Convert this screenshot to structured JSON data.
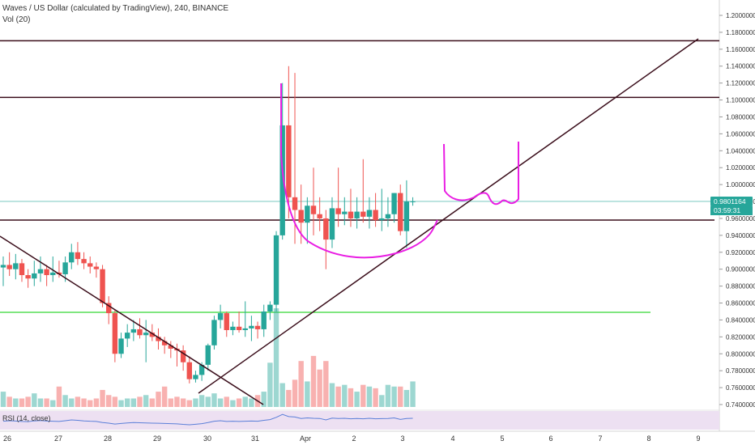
{
  "header": {
    "title": "Waves / US Dollar (calculated by TradingView), 240, BINANCE",
    "volume_label": "Vol (20)"
  },
  "rsi_label": "RSI (14, close)",
  "price_label": {
    "value": "0.9801164",
    "countdown": "03:59:31",
    "color": "#26a69a"
  },
  "colors": {
    "up": "#26a69a",
    "down": "#ef5350",
    "drawing": "#e91ee3",
    "line": "#3a0d1a",
    "support": "#00cc00",
    "rsi_bg": "#ede0f2",
    "rsi_line": "#5b7fd8"
  },
  "chart_data": {
    "type": "candlestick",
    "title": "Waves / US Dollar (calculated by TradingView), 240, BINANCE",
    "y_axis": {
      "min": 0.74,
      "max": 1.2,
      "ticks": [
        "1.2000000",
        "1.1800000",
        "1.1600000",
        "1.1400000",
        "1.1200000",
        "1.1000000",
        "1.0800000",
        "1.0600000",
        "1.0400000",
        "1.0200000",
        "1.0000000",
        "0.9800000",
        "0.9600000",
        "0.9400000",
        "0.9200000",
        "0.9000000",
        "0.8800000",
        "0.8600000",
        "0.8400000",
        "0.8200000",
        "0.8000000",
        "0.7800000",
        "0.7600000",
        "0.7400000"
      ]
    },
    "x_ticks": [
      "26",
      "27",
      "28",
      "29",
      "30",
      "31",
      "Apr",
      "2",
      "3",
      "4",
      "5",
      "6",
      "7",
      "8",
      "9"
    ],
    "candles": [
      {
        "o": 0.902,
        "h": 0.915,
        "l": 0.88,
        "c": 0.905
      },
      {
        "o": 0.905,
        "h": 0.92,
        "l": 0.892,
        "c": 0.9
      },
      {
        "o": 0.9,
        "h": 0.918,
        "l": 0.888,
        "c": 0.907
      },
      {
        "o": 0.907,
        "h": 0.912,
        "l": 0.885,
        "c": 0.893
      },
      {
        "o": 0.893,
        "h": 0.9,
        "l": 0.878,
        "c": 0.889
      },
      {
        "o": 0.889,
        "h": 0.91,
        "l": 0.88,
        "c": 0.895
      },
      {
        "o": 0.895,
        "h": 0.915,
        "l": 0.885,
        "c": 0.9
      },
      {
        "o": 0.9,
        "h": 0.905,
        "l": 0.88,
        "c": 0.893
      },
      {
        "o": 0.893,
        "h": 0.915,
        "l": 0.885,
        "c": 0.896
      },
      {
        "o": 0.896,
        "h": 0.91,
        "l": 0.89,
        "c": 0.894
      },
      {
        "o": 0.894,
        "h": 0.915,
        "l": 0.885,
        "c": 0.908
      },
      {
        "o": 0.908,
        "h": 0.93,
        "l": 0.9,
        "c": 0.92
      },
      {
        "o": 0.92,
        "h": 0.932,
        "l": 0.905,
        "c": 0.912
      },
      {
        "o": 0.912,
        "h": 0.92,
        "l": 0.9,
        "c": 0.907
      },
      {
        "o": 0.907,
        "h": 0.915,
        "l": 0.895,
        "c": 0.903
      },
      {
        "o": 0.903,
        "h": 0.908,
        "l": 0.89,
        "c": 0.9
      },
      {
        "o": 0.9,
        "h": 0.905,
        "l": 0.855,
        "c": 0.86
      },
      {
        "o": 0.86,
        "h": 0.868,
        "l": 0.835,
        "c": 0.848
      },
      {
        "o": 0.848,
        "h": 0.852,
        "l": 0.79,
        "c": 0.8
      },
      {
        "o": 0.8,
        "h": 0.825,
        "l": 0.795,
        "c": 0.818
      },
      {
        "o": 0.818,
        "h": 0.835,
        "l": 0.808,
        "c": 0.825
      },
      {
        "o": 0.825,
        "h": 0.84,
        "l": 0.815,
        "c": 0.829
      },
      {
        "o": 0.829,
        "h": 0.842,
        "l": 0.818,
        "c": 0.822
      },
      {
        "o": 0.822,
        "h": 0.84,
        "l": 0.79,
        "c": 0.825
      },
      {
        "o": 0.825,
        "h": 0.835,
        "l": 0.815,
        "c": 0.82
      },
      {
        "o": 0.82,
        "h": 0.83,
        "l": 0.805,
        "c": 0.815
      },
      {
        "o": 0.815,
        "h": 0.82,
        "l": 0.8,
        "c": 0.81
      },
      {
        "o": 0.81,
        "h": 0.815,
        "l": 0.795,
        "c": 0.806
      },
      {
        "o": 0.806,
        "h": 0.812,
        "l": 0.785,
        "c": 0.804
      },
      {
        "o": 0.804,
        "h": 0.81,
        "l": 0.78,
        "c": 0.79
      },
      {
        "o": 0.79,
        "h": 0.797,
        "l": 0.765,
        "c": 0.77
      },
      {
        "o": 0.77,
        "h": 0.78,
        "l": 0.766,
        "c": 0.775
      },
      {
        "o": 0.775,
        "h": 0.79,
        "l": 0.768,
        "c": 0.787
      },
      {
        "o": 0.787,
        "h": 0.812,
        "l": 0.78,
        "c": 0.81
      },
      {
        "o": 0.81,
        "h": 0.845,
        "l": 0.805,
        "c": 0.84
      },
      {
        "o": 0.84,
        "h": 0.858,
        "l": 0.83,
        "c": 0.848
      },
      {
        "o": 0.848,
        "h": 0.85,
        "l": 0.82,
        "c": 0.828
      },
      {
        "o": 0.828,
        "h": 0.838,
        "l": 0.822,
        "c": 0.832
      },
      {
        "o": 0.832,
        "h": 0.85,
        "l": 0.825,
        "c": 0.828
      },
      {
        "o": 0.828,
        "h": 0.862,
        "l": 0.82,
        "c": 0.83
      },
      {
        "o": 0.83,
        "h": 0.845,
        "l": 0.815,
        "c": 0.833
      },
      {
        "o": 0.833,
        "h": 0.838,
        "l": 0.818,
        "c": 0.829
      },
      {
        "o": 0.829,
        "h": 0.858,
        "l": 0.82,
        "c": 0.85
      },
      {
        "o": 0.85,
        "h": 0.862,
        "l": 0.84,
        "c": 0.858
      },
      {
        "o": 0.858,
        "h": 0.945,
        "l": 0.85,
        "c": 0.94
      },
      {
        "o": 0.94,
        "h": 1.12,
        "l": 0.935,
        "c": 1.07
      },
      {
        "o": 1.07,
        "h": 1.14,
        "l": 0.96,
        "c": 0.985
      },
      {
        "o": 0.985,
        "h": 1.132,
        "l": 0.93,
        "c": 0.97
      },
      {
        "o": 0.97,
        "h": 1.0,
        "l": 0.93,
        "c": 0.955
      },
      {
        "o": 0.955,
        "h": 0.985,
        "l": 0.93,
        "c": 0.975
      },
      {
        "o": 0.975,
        "h": 1.02,
        "l": 0.94,
        "c": 0.965
      },
      {
        "o": 0.965,
        "h": 0.985,
        "l": 0.945,
        "c": 0.96
      },
      {
        "o": 0.96,
        "h": 0.97,
        "l": 0.9,
        "c": 0.935
      },
      {
        "o": 0.935,
        "h": 0.985,
        "l": 0.925,
        "c": 0.972
      },
      {
        "o": 0.972,
        "h": 1.02,
        "l": 0.95,
        "c": 0.965
      },
      {
        "o": 0.965,
        "h": 0.985,
        "l": 0.952,
        "c": 0.968
      },
      {
        "o": 0.968,
        "h": 0.995,
        "l": 0.95,
        "c": 0.96
      },
      {
        "o": 0.96,
        "h": 0.985,
        "l": 0.948,
        "c": 0.968
      },
      {
        "o": 0.968,
        "h": 1.03,
        "l": 0.955,
        "c": 0.962
      },
      {
        "o": 0.962,
        "h": 0.985,
        "l": 0.948,
        "c": 0.97
      },
      {
        "o": 0.97,
        "h": 0.99,
        "l": 0.95,
        "c": 0.958
      },
      {
        "o": 0.958,
        "h": 0.995,
        "l": 0.945,
        "c": 0.96
      },
      {
        "o": 0.96,
        "h": 0.985,
        "l": 0.95,
        "c": 0.965
      },
      {
        "o": 0.965,
        "h": 0.99,
        "l": 0.955,
        "c": 0.99
      },
      {
        "o": 0.99,
        "h": 1.0,
        "l": 0.94,
        "c": 0.945
      },
      {
        "o": 0.945,
        "h": 1.005,
        "l": 0.925,
        "c": 0.98
      },
      {
        "o": 0.98,
        "h": 0.985,
        "l": 0.975,
        "c": 0.9801164
      }
    ],
    "volume": [
      9,
      6,
      5,
      5,
      6,
      8,
      5,
      5,
      4,
      12,
      7,
      5,
      6,
      5,
      4,
      5,
      10,
      7,
      6,
      4,
      5,
      5,
      6,
      7,
      5,
      9,
      12,
      5,
      6,
      5,
      4,
      5,
      7,
      6,
      8,
      5,
      6,
      4,
      5,
      6,
      5,
      7,
      9,
      26,
      58,
      14,
      10,
      16,
      27,
      15,
      30,
      22,
      27,
      14,
      12,
      13,
      11,
      9,
      13,
      12,
      11,
      7,
      13,
      12,
      12,
      10,
      15
    ],
    "horizontal_lines": [
      1.17,
      1.103,
      0.958,
      0.849
    ],
    "current_price": 0.9801164,
    "rsi": [
      45,
      48,
      46,
      44,
      43,
      47,
      49,
      46,
      45,
      44,
      48,
      52,
      50,
      47,
      45,
      44,
      38,
      35,
      30,
      33,
      36,
      38,
      37,
      36,
      35,
      34,
      33,
      32,
      31,
      28,
      26,
      29,
      32,
      38,
      45,
      48,
      44,
      45,
      44,
      45,
      46,
      45,
      50,
      54,
      66,
      82,
      70,
      68,
      60,
      63,
      61,
      60,
      52,
      62,
      60,
      61,
      58,
      60,
      58,
      61,
      58,
      59,
      60,
      63,
      55,
      60,
      61
    ]
  }
}
